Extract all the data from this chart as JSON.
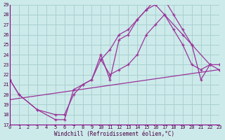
{
  "xlabel": "Windchill (Refroidissement éolien,°C)",
  "bg_color": "#cdeaea",
  "grid_color": "#a8d0d0",
  "line_color": "#993399",
  "xmin": 0,
  "xmax": 23,
  "ymin": 17,
  "ymax": 29,
  "curve1_x": [
    0,
    1,
    3,
    5,
    6,
    7,
    8,
    9,
    10,
    11,
    12,
    13,
    14,
    15,
    16,
    17,
    18,
    19,
    20,
    22
  ],
  "curve1_y": [
    21.5,
    20.0,
    18.5,
    17.5,
    17.5,
    20.5,
    21.0,
    21.5,
    24.0,
    21.5,
    25.5,
    26.0,
    27.5,
    28.5,
    29.5,
    29.5,
    28.0,
    26.5,
    25.0,
    23.0
  ],
  "curve2_x": [
    10,
    11,
    12,
    13,
    14,
    15,
    16,
    17,
    18,
    19,
    20,
    21,
    22,
    23
  ],
  "curve2_y": [
    23.5,
    24.5,
    26.0,
    26.5,
    27.5,
    28.5,
    29.0,
    28.0,
    26.5,
    25.0,
    23.0,
    22.5,
    23.0,
    23.0
  ],
  "curve3_x": [
    0,
    1,
    3,
    5,
    6,
    7,
    8,
    9,
    10,
    11,
    12,
    13,
    14,
    15,
    16,
    17,
    19,
    20,
    21,
    22,
    23
  ],
  "curve3_y": [
    21.5,
    20.0,
    18.5,
    18.0,
    18.0,
    20.0,
    21.0,
    21.5,
    23.5,
    22.0,
    22.5,
    23.0,
    24.0,
    26.0,
    27.0,
    28.0,
    26.0,
    25.0,
    21.5,
    23.0,
    22.5
  ],
  "curve4_x": [
    0,
    23
  ],
  "curve4_y": [
    19.5,
    22.5
  ]
}
